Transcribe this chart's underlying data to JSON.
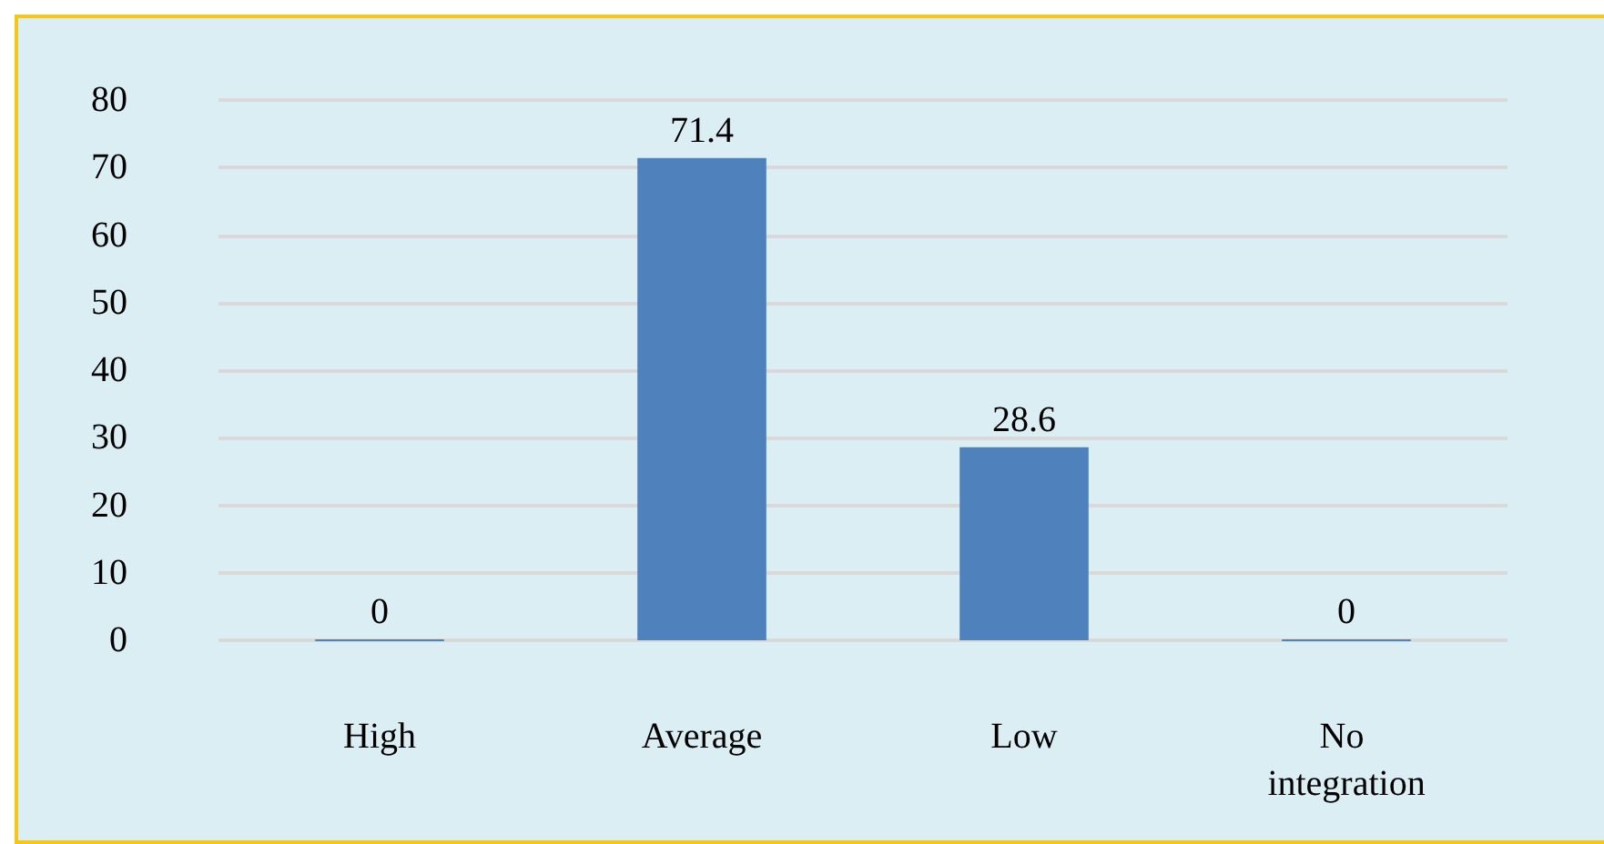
{
  "chart_data": {
    "type": "bar",
    "categories": [
      "High",
      "Average",
      "Low",
      "No integration"
    ],
    "values": [
      0,
      71.4,
      28.6,
      0
    ],
    "color": "#4f81bd",
    "ylim": [
      0,
      80
    ],
    "yticks": [
      0,
      10,
      20,
      30,
      40,
      50,
      60,
      70,
      80
    ],
    "grid": "y",
    "data_labels": true
  }
}
